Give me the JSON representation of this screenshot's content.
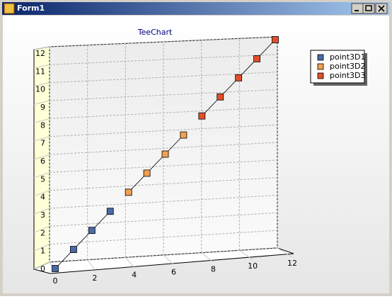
{
  "window": {
    "title": "Form1"
  },
  "chart_data": {
    "type": "scatter",
    "title": "TeeChart",
    "series": [
      {
        "name": "point3D1",
        "color": "#4a6aa5",
        "x": [
          0,
          1,
          2,
          3
        ],
        "values": [
          0,
          1,
          2,
          3
        ]
      },
      {
        "name": "point3D2",
        "color": "#f0a050",
        "x": [
          4,
          5,
          6,
          7
        ],
        "values": [
          4,
          5,
          6,
          7
        ]
      },
      {
        "name": "point3D3",
        "color": "#e0502a",
        "x": [
          8,
          9,
          10,
          11,
          12
        ],
        "values": [
          8,
          9,
          10,
          11,
          12
        ]
      }
    ],
    "xlim": [
      0,
      12
    ],
    "ylim": [
      0,
      12
    ],
    "xticks": [
      0,
      2,
      4,
      6,
      8,
      10,
      12
    ],
    "yticks": [
      0,
      1,
      2,
      3,
      4,
      5,
      6,
      7,
      8,
      9,
      10,
      11,
      12
    ],
    "grid": true,
    "legend": "right"
  }
}
